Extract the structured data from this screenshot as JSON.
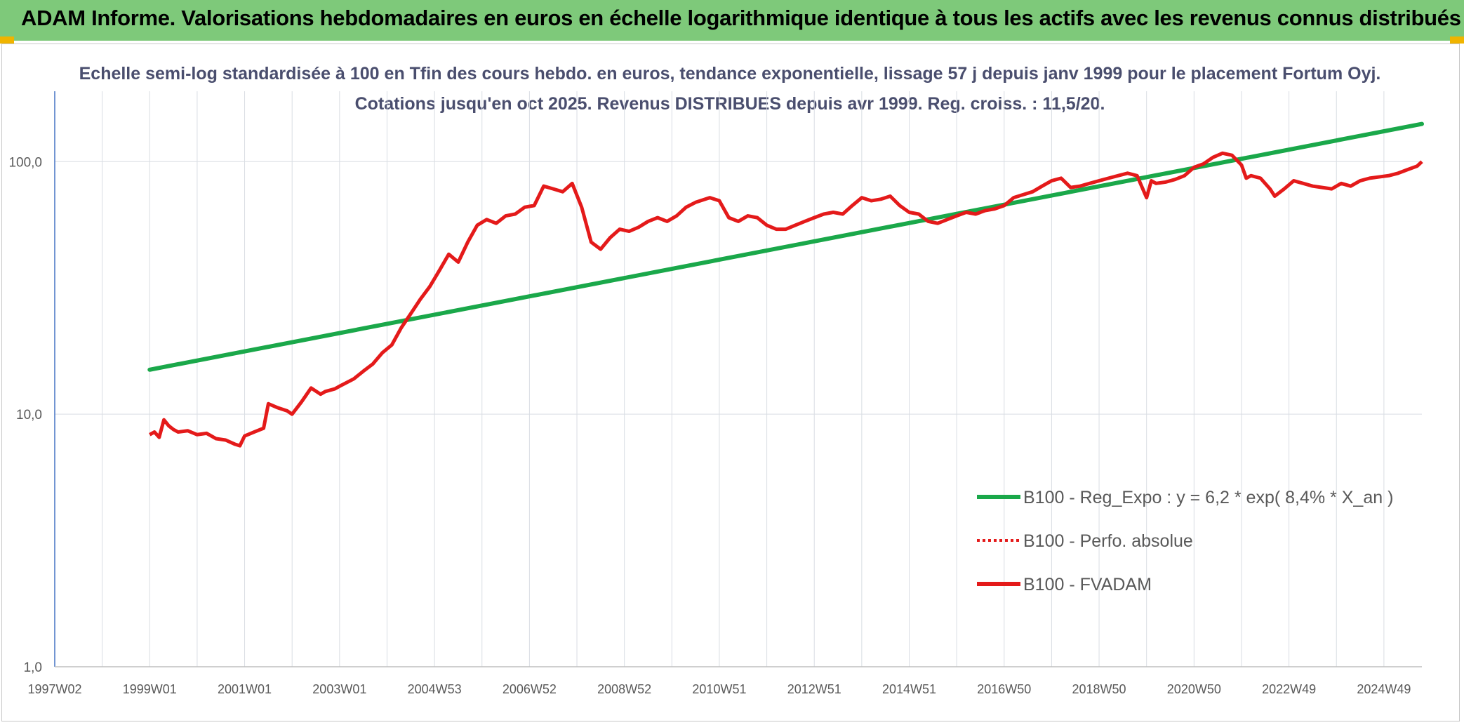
{
  "banner": {
    "title": "ADAM Informe. Valorisations hebdomadaires en euros en échelle logarithmique identique à tous les actifs avec les revenus connus distribués"
  },
  "colors": {
    "banner": "#7ec97a",
    "corner_accent": "#f0b400",
    "trend": "#1aa84a",
    "fvadam": "#e41a1a",
    "title_text": "#4a4e6e",
    "axis_text": "#595959",
    "grid": "#d9dde3",
    "y_axis": "#4472c4"
  },
  "chart_data": {
    "type": "line",
    "title": "Echelle semi-log standardisée à 100 en Tfin des cours hebdo. en euros, tendance exponentielle, lissage 57 j depuis janv 1999 pour le placement Fortum Oyj. Cotations jusqu'en oct 2025. Revenus DISTRIBUES depuis avr 1999. Reg. croiss. : 11,5/20.",
    "y_scale": "log",
    "ylim": [
      1,
      190
    ],
    "y_ticks": [
      {
        "value": 1,
        "label": "1,0"
      },
      {
        "value": 10,
        "label": "10,0"
      },
      {
        "value": 100,
        "label": "100,0"
      }
    ],
    "xlim": [
      1997.0,
      2025.8
    ],
    "x_ticks": [
      {
        "value": 1997.0,
        "label": "1997W02"
      },
      {
        "value": 1999.0,
        "label": "1999W01"
      },
      {
        "value": 2001.0,
        "label": "2001W01"
      },
      {
        "value": 2003.0,
        "label": "2003W01"
      },
      {
        "value": 2005.0,
        "label": "2004W53"
      },
      {
        "value": 2007.0,
        "label": "2006W52"
      },
      {
        "value": 2009.0,
        "label": "2008W52"
      },
      {
        "value": 2011.0,
        "label": "2010W51"
      },
      {
        "value": 2013.0,
        "label": "2012W51"
      },
      {
        "value": 2015.0,
        "label": "2014W51"
      },
      {
        "value": 2017.0,
        "label": "2016W50"
      },
      {
        "value": 2019.0,
        "label": "2018W50"
      },
      {
        "value": 2021.0,
        "label": "2020W50"
      },
      {
        "value": 2023.0,
        "label": "2022W49"
      },
      {
        "value": 2025.0,
        "label": "2024W49"
      }
    ],
    "grid": true,
    "legend_position": "bottom-right",
    "legend": [
      {
        "label": "B100 - Reg_Expo : y = 6,2 * exp( 8,4% *  X_an )",
        "color": "#1aa84a",
        "style": "solid"
      },
      {
        "label": "B100 - Perfo. absolue",
        "color": "#e41a1a",
        "style": "dotted"
      },
      {
        "label": "B100 - FVADAM",
        "color": "#e41a1a",
        "style": "solid"
      }
    ],
    "series": [
      {
        "name": "B100 - Reg_Expo : y = 6,2 * exp( 8,4% *  X_an )",
        "x": [
          1999.0,
          2025.8
        ],
        "y": [
          15.0,
          141.0
        ]
      },
      {
        "name": "B100 - FVADAM",
        "x": [
          1999.0,
          1999.1,
          1999.2,
          1999.3,
          1999.4,
          1999.5,
          1999.6,
          1999.8,
          2000.0,
          2000.2,
          2000.4,
          2000.6,
          2000.8,
          2000.9,
          2001.0,
          2001.2,
          2001.4,
          2001.5,
          2001.7,
          2001.9,
          2002.0,
          2002.2,
          2002.4,
          2002.6,
          2002.7,
          2002.9,
          2003.0,
          2003.3,
          2003.5,
          2003.7,
          2003.9,
          2004.1,
          2004.3,
          2004.5,
          2004.7,
          2004.9,
          2005.1,
          2005.3,
          2005.5,
          2005.7,
          2005.9,
          2006.1,
          2006.3,
          2006.5,
          2006.7,
          2006.9,
          2007.1,
          2007.3,
          2007.5,
          2007.7,
          2007.9,
          2008.1,
          2008.3,
          2008.5,
          2008.7,
          2008.9,
          2009.1,
          2009.3,
          2009.5,
          2009.7,
          2009.9,
          2010.1,
          2010.3,
          2010.5,
          2010.8,
          2011.0,
          2011.2,
          2011.4,
          2011.6,
          2011.8,
          2012.0,
          2012.2,
          2012.4,
          2012.6,
          2012.8,
          2013.0,
          2013.2,
          2013.4,
          2013.6,
          2013.8,
          2014.0,
          2014.2,
          2014.4,
          2014.6,
          2014.8,
          2015.0,
          2015.2,
          2015.4,
          2015.6,
          2015.8,
          2016.0,
          2016.2,
          2016.4,
          2016.6,
          2016.8,
          2017.0,
          2017.2,
          2017.4,
          2017.6,
          2017.8,
          2018.0,
          2018.2,
          2018.4,
          2018.6,
          2018.8,
          2019.0,
          2019.2,
          2019.4,
          2019.6,
          2019.8,
          2020.0,
          2020.1,
          2020.2,
          2020.4,
          2020.6,
          2020.8,
          2021.0,
          2021.2,
          2021.4,
          2021.6,
          2021.8,
          2022.0,
          2022.1,
          2022.2,
          2022.4,
          2022.6,
          2022.7,
          2022.9,
          2023.1,
          2023.3,
          2023.5,
          2023.7,
          2023.9,
          2024.1,
          2024.3,
          2024.5,
          2024.7,
          2024.9,
          2025.1,
          2025.3,
          2025.5,
          2025.7,
          2025.8
        ],
        "y": [
          8.3,
          8.5,
          8.1,
          9.5,
          9.0,
          8.7,
          8.5,
          8.6,
          8.3,
          8.4,
          8.0,
          7.9,
          7.6,
          7.5,
          8.2,
          8.5,
          8.8,
          11.0,
          10.6,
          10.3,
          10.0,
          11.2,
          12.7,
          12.0,
          12.3,
          12.6,
          12.9,
          13.8,
          14.8,
          15.8,
          17.5,
          18.8,
          22.0,
          25.0,
          28.5,
          32.0,
          37.0,
          43.0,
          40.0,
          48.0,
          56.0,
          59.0,
          57.0,
          61.0,
          62.0,
          66.0,
          67.0,
          80.0,
          78.0,
          76.0,
          82.0,
          66.0,
          48.0,
          45.0,
          50.0,
          54.0,
          53.0,
          55.0,
          58.0,
          60.0,
          58.0,
          61.0,
          66.0,
          69.0,
          72.0,
          70.0,
          60.0,
          58.0,
          61.0,
          60.0,
          56.0,
          54.0,
          54.0,
          56.0,
          58.0,
          60.0,
          62.0,
          63.0,
          62.0,
          67.0,
          72.0,
          70.0,
          71.0,
          73.0,
          67.0,
          63.0,
          62.0,
          58.0,
          57.0,
          59.0,
          61.0,
          63.0,
          62.0,
          64.0,
          65.0,
          67.0,
          72.0,
          74.0,
          76.0,
          80.0,
          84.0,
          86.0,
          79.0,
          80.0,
          82.0,
          84.0,
          86.0,
          88.0,
          90.0,
          88.0,
          72.0,
          84.0,
          82.0,
          83.0,
          85.0,
          88.0,
          95.0,
          98.0,
          104.0,
          108.0,
          106.0,
          97.0,
          86.0,
          88.0,
          86.0,
          78.0,
          73.0,
          78.0,
          84.0,
          82.0,
          80.0,
          79.0,
          78.0,
          82.0,
          80.0,
          84.0,
          86.0,
          87.0,
          88.0,
          90.0,
          93.0,
          96.0,
          100.0
        ]
      }
    ]
  }
}
